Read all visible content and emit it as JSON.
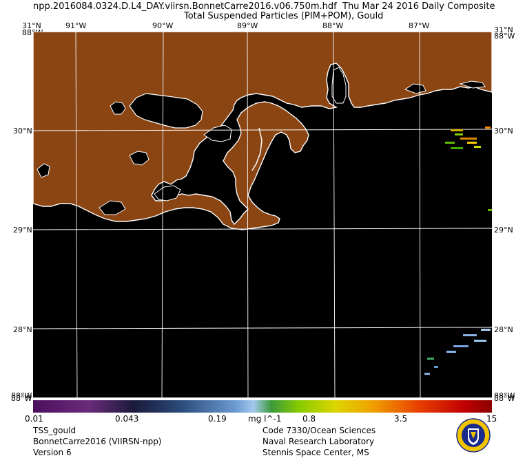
{
  "header": {
    "filename": "npp.2016084.0324.D.L4_DAY.viirsn.BonnetCarre2016.v06.750m.hdf",
    "date": "Thu Mar 24 2016 Daily Composite",
    "product": "Total Suspended Particles (PIM+POM), Gould"
  },
  "longitude_labels": {
    "w91": "91°W",
    "w90": "90°W",
    "w89": "89°W",
    "w88": "88°W",
    "w87": "87°W",
    "corner_tl_top": "31°N",
    "corner_tl_bottom": "88°W",
    "corner_tr_top": "31°N",
    "corner_tr_bottom": "88°W",
    "corner_bl_top": "88°W",
    "corner_bl_bottom": "88°W",
    "corner_br_top": "88°W",
    "corner_br_bottom": "88°W"
  },
  "latitude_labels": {
    "n30_left": "30°N",
    "n30_right": "30°N",
    "n29_left": "29°N",
    "n29_right": "29°N",
    "n28_left": "28°N",
    "n28_right": "28°N"
  },
  "colorbar": {
    "ticks": {
      "t1": "0.01",
      "t2": "0.043",
      "t3": "0.19",
      "unit": "mg l^-1",
      "t4": "0.8",
      "t5": "3.5",
      "t6": "15"
    },
    "scale": "log"
  },
  "footer": {
    "left_line1": "TSS_gould",
    "left_line2": "BonnetCarre2016 (VIIRSN-npp)",
    "left_line3": "Version 6",
    "right_line1": "Code 7330/Ocean Sciences",
    "right_line2": "Naval Research Laboratory",
    "right_line3": "Stennis Space Center, MS"
  },
  "colors": {
    "land": "#8b4513",
    "water": "#000000",
    "coastline": "#ffffff",
    "grid": "#ffffff"
  }
}
